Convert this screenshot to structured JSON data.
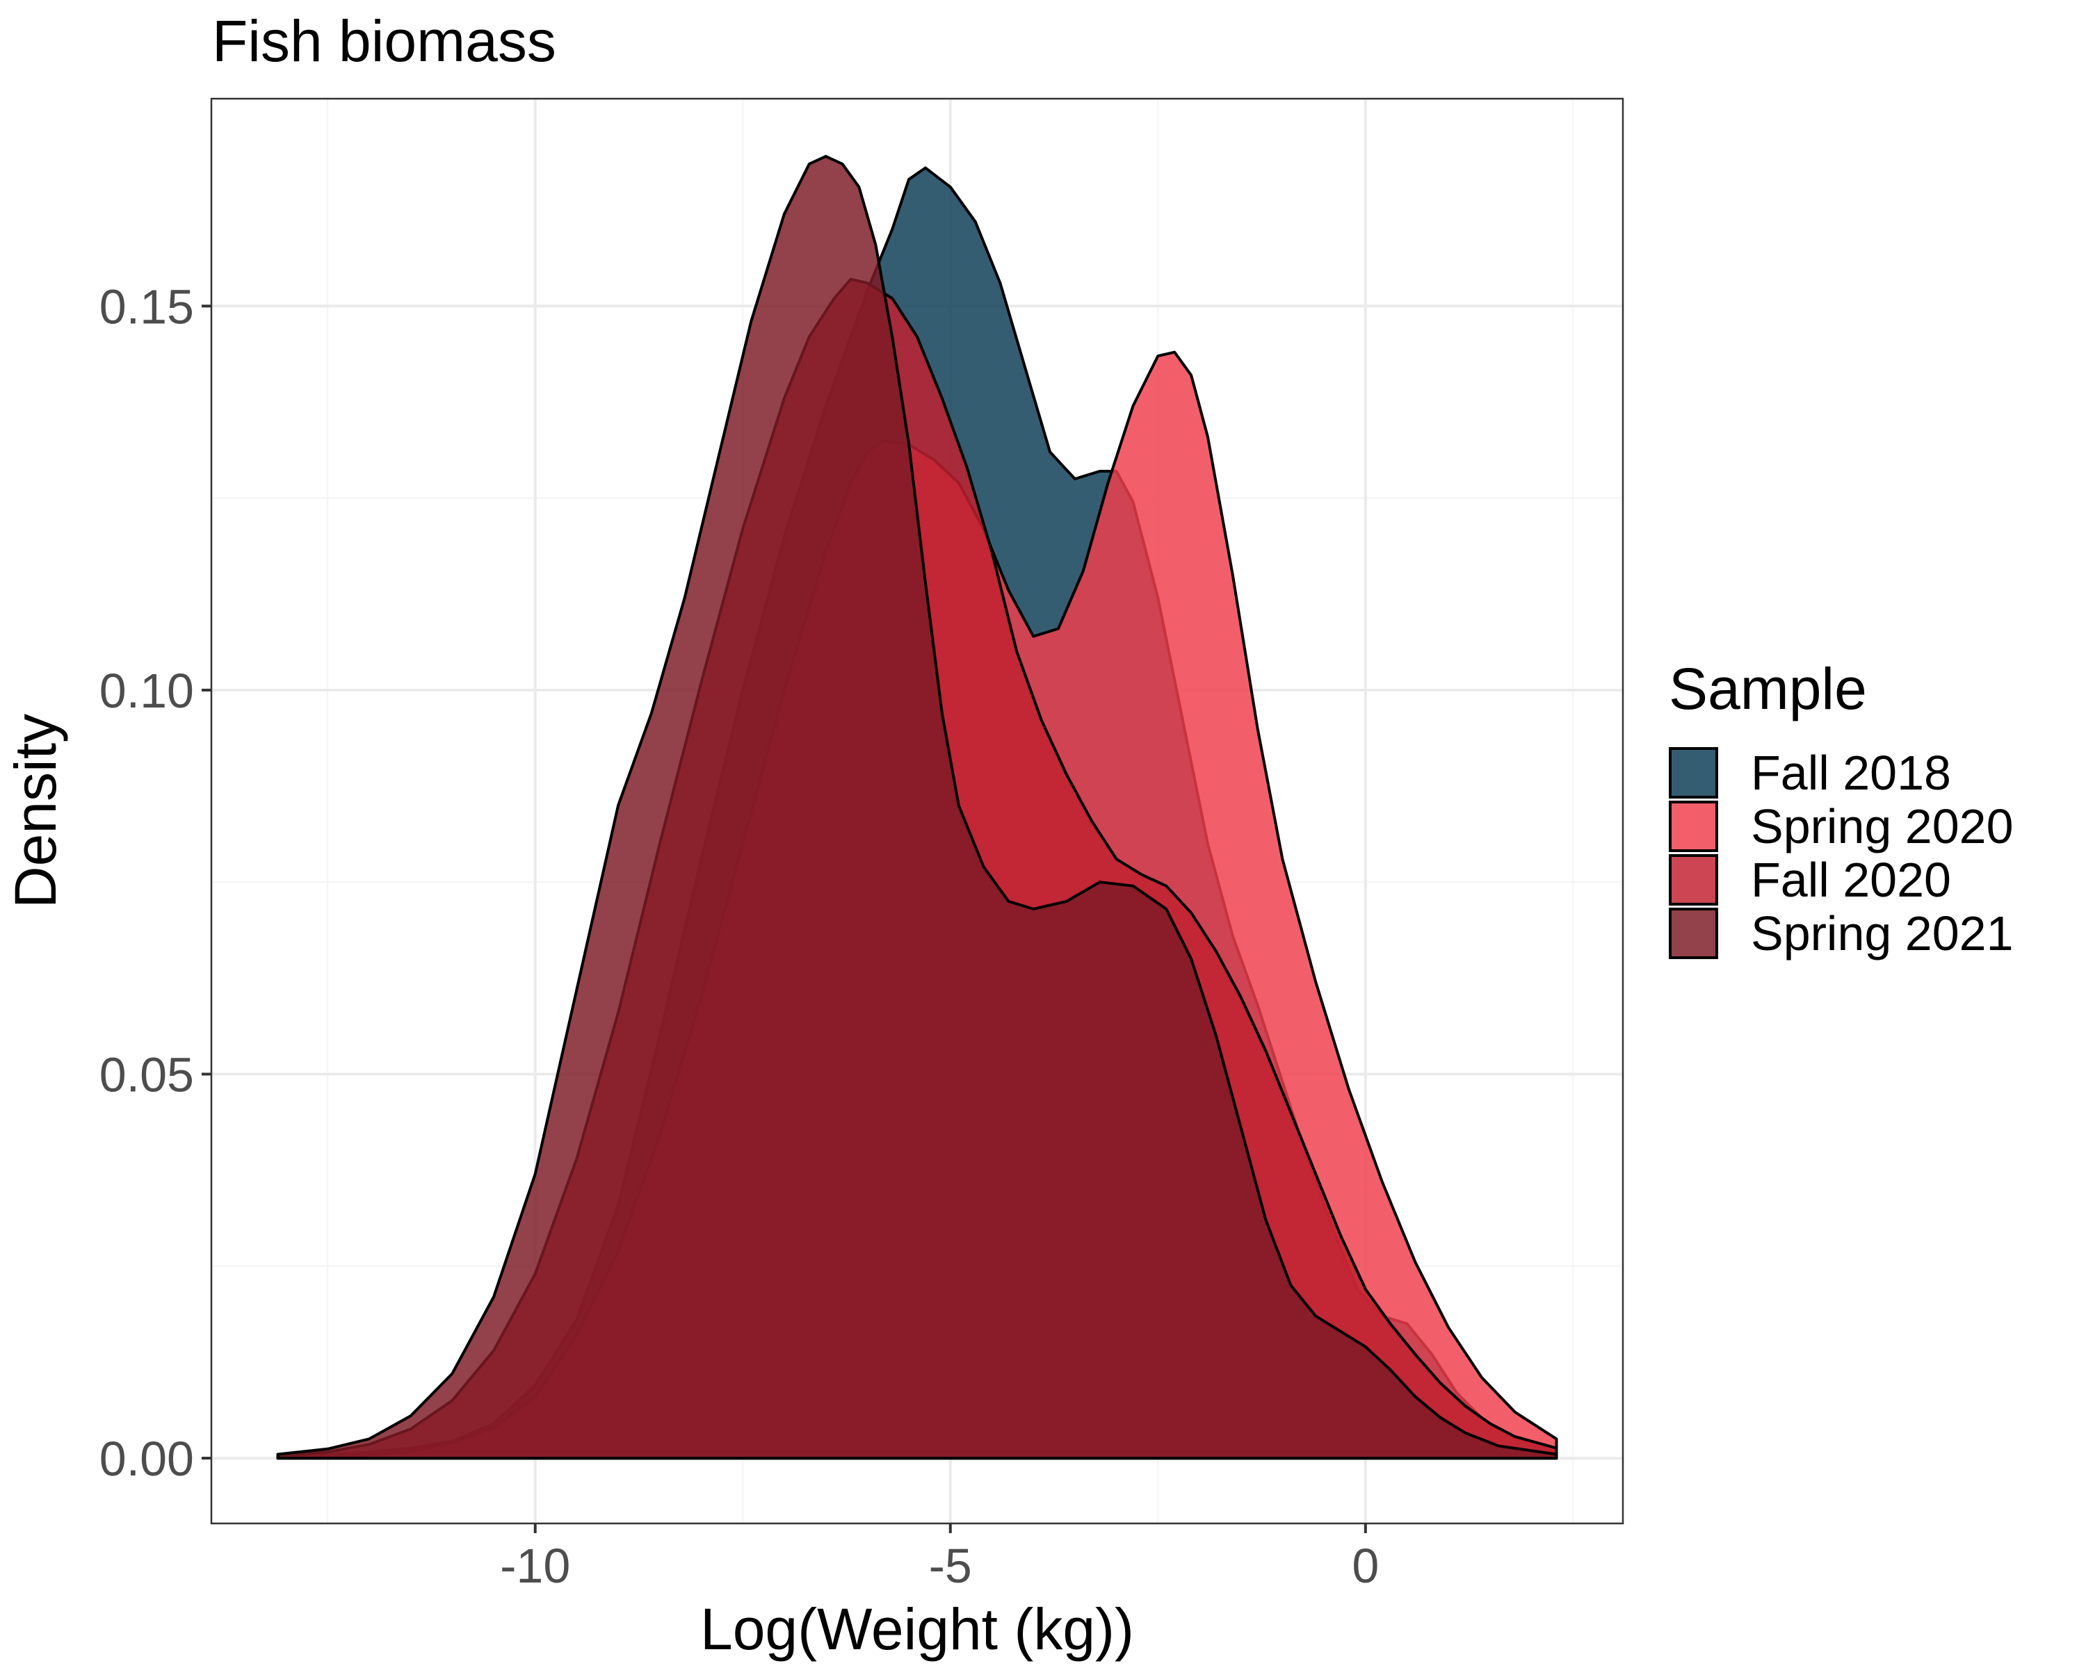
{
  "chart_data": {
    "type": "area",
    "title": "Fish biomass",
    "xlabel": "Log(Weight (kg))",
    "ylabel": "Density",
    "xlim": [
      -13.9,
      3.1
    ],
    "ylim": [
      -0.0085,
      0.177
    ],
    "x_ticks": [
      -10,
      -5,
      0
    ],
    "x_tick_labels": [
      "-10",
      "-5",
      "0"
    ],
    "x_minor_ticks": [
      -12.5,
      -7.5,
      -2.5,
      2.5
    ],
    "y_ticks": [
      0.0,
      0.05,
      0.1,
      0.15
    ],
    "y_tick_labels": [
      "0.00",
      "0.05",
      "0.10",
      "0.15"
    ],
    "y_minor_ticks": [
      0.025,
      0.075,
      0.125
    ],
    "grid": true,
    "legend": {
      "title": "Sample",
      "position": "right"
    },
    "series": [
      {
        "name": "Fall 2018",
        "color": "#0c3c55",
        "opacity": 0.83,
        "points": [
          [
            -13.1,
            0.0003
          ],
          [
            -12.5,
            0.0005
          ],
          [
            -12.0,
            0.0008
          ],
          [
            -11.5,
            0.0013
          ],
          [
            -11.0,
            0.0022
          ],
          [
            -10.5,
            0.0045
          ],
          [
            -10.0,
            0.0095
          ],
          [
            -9.5,
            0.018
          ],
          [
            -9.0,
            0.033
          ],
          [
            -8.5,
            0.055
          ],
          [
            -8.0,
            0.078
          ],
          [
            -7.5,
            0.1
          ],
          [
            -7.0,
            0.12
          ],
          [
            -6.5,
            0.137
          ],
          [
            -6.0,
            0.152
          ],
          [
            -5.7,
            0.16
          ],
          [
            -5.5,
            0.1665
          ],
          [
            -5.3,
            0.168
          ],
          [
            -5.0,
            0.1655
          ],
          [
            -4.7,
            0.161
          ],
          [
            -4.4,
            0.153
          ],
          [
            -4.1,
            0.142
          ],
          [
            -3.8,
            0.131
          ],
          [
            -3.5,
            0.1275
          ],
          [
            -3.2,
            0.1285
          ],
          [
            -3.0,
            0.1285
          ],
          [
            -2.8,
            0.1245
          ],
          [
            -2.5,
            0.112
          ],
          [
            -2.2,
            0.096
          ],
          [
            -1.9,
            0.08
          ],
          [
            -1.6,
            0.068
          ],
          [
            -1.3,
            0.059
          ],
          [
            -1.0,
            0.049
          ],
          [
            -0.7,
            0.039
          ],
          [
            -0.4,
            0.03
          ],
          [
            -0.1,
            0.022
          ],
          [
            0.2,
            0.0185
          ],
          [
            0.5,
            0.0175
          ],
          [
            0.8,
            0.0135
          ],
          [
            1.1,
            0.0085
          ],
          [
            1.4,
            0.0052
          ],
          [
            1.7,
            0.0031
          ],
          [
            2.0,
            0.0017
          ],
          [
            2.3,
            0.0008
          ]
        ]
      },
      {
        "name": "Spring 2020",
        "color": "#ef3e4c",
        "opacity": 0.83,
        "points": [
          [
            -13.1,
            0.0001
          ],
          [
            -12.5,
            0.0002
          ],
          [
            -12.0,
            0.0004
          ],
          [
            -11.5,
            0.0009
          ],
          [
            -11.0,
            0.002
          ],
          [
            -10.5,
            0.004
          ],
          [
            -10.0,
            0.008
          ],
          [
            -9.5,
            0.016
          ],
          [
            -9.0,
            0.027
          ],
          [
            -8.5,
            0.042
          ],
          [
            -8.0,
            0.06
          ],
          [
            -7.5,
            0.08
          ],
          [
            -7.0,
            0.1
          ],
          [
            -6.5,
            0.118
          ],
          [
            -6.2,
            0.127
          ],
          [
            -6.0,
            0.131
          ],
          [
            -5.8,
            0.1325
          ],
          [
            -5.5,
            0.132
          ],
          [
            -5.2,
            0.13
          ],
          [
            -4.9,
            0.127
          ],
          [
            -4.6,
            0.121
          ],
          [
            -4.3,
            0.113
          ],
          [
            -4.0,
            0.107
          ],
          [
            -3.7,
            0.108
          ],
          [
            -3.4,
            0.1155
          ],
          [
            -3.1,
            0.127
          ],
          [
            -2.8,
            0.137
          ],
          [
            -2.5,
            0.1435
          ],
          [
            -2.3,
            0.144
          ],
          [
            -2.1,
            0.141
          ],
          [
            -1.9,
            0.133
          ],
          [
            -1.6,
            0.115
          ],
          [
            -1.3,
            0.095
          ],
          [
            -1.0,
            0.078
          ],
          [
            -0.6,
            0.062
          ],
          [
            -0.2,
            0.048
          ],
          [
            0.2,
            0.036
          ],
          [
            0.6,
            0.0255
          ],
          [
            1.0,
            0.017
          ],
          [
            1.4,
            0.0105
          ],
          [
            1.8,
            0.006
          ],
          [
            2.3,
            0.0025
          ]
        ]
      },
      {
        "name": "Fall 2020",
        "color": "#c0202f",
        "opacity": 0.83,
        "points": [
          [
            -13.1,
            0.0003
          ],
          [
            -12.5,
            0.0008
          ],
          [
            -12.0,
            0.0018
          ],
          [
            -11.5,
            0.0038
          ],
          [
            -11.0,
            0.0075
          ],
          [
            -10.5,
            0.014
          ],
          [
            -10.0,
            0.024
          ],
          [
            -9.5,
            0.039
          ],
          [
            -9.0,
            0.058
          ],
          [
            -8.5,
            0.08
          ],
          [
            -8.0,
            0.101
          ],
          [
            -7.5,
            0.121
          ],
          [
            -7.0,
            0.138
          ],
          [
            -6.7,
            0.146
          ],
          [
            -6.4,
            0.151
          ],
          [
            -6.2,
            0.1535
          ],
          [
            -6.0,
            0.153
          ],
          [
            -5.7,
            0.151
          ],
          [
            -5.4,
            0.146
          ],
          [
            -5.1,
            0.138
          ],
          [
            -4.8,
            0.129
          ],
          [
            -4.5,
            0.118
          ],
          [
            -4.2,
            0.105
          ],
          [
            -3.9,
            0.096
          ],
          [
            -3.6,
            0.089
          ],
          [
            -3.3,
            0.083
          ],
          [
            -3.0,
            0.078
          ],
          [
            -2.7,
            0.076
          ],
          [
            -2.4,
            0.0745
          ],
          [
            -2.1,
            0.071
          ],
          [
            -1.8,
            0.066
          ],
          [
            -1.5,
            0.06
          ],
          [
            -1.2,
            0.053
          ],
          [
            -0.9,
            0.045
          ],
          [
            -0.6,
            0.037
          ],
          [
            -0.3,
            0.029
          ],
          [
            0.0,
            0.022
          ],
          [
            0.3,
            0.0175
          ],
          [
            0.6,
            0.0135
          ],
          [
            0.9,
            0.0098
          ],
          [
            1.2,
            0.0068
          ],
          [
            1.5,
            0.0045
          ],
          [
            1.8,
            0.0028
          ],
          [
            2.3,
            0.0013
          ]
        ]
      },
      {
        "name": "Spring 2021",
        "color": "#7d1a25",
        "opacity": 0.83,
        "points": [
          [
            -13.1,
            0.0005
          ],
          [
            -12.5,
            0.0012
          ],
          [
            -12.0,
            0.0025
          ],
          [
            -11.5,
            0.0055
          ],
          [
            -11.0,
            0.011
          ],
          [
            -10.5,
            0.021
          ],
          [
            -10.0,
            0.037
          ],
          [
            -9.5,
            0.061
          ],
          [
            -9.0,
            0.085
          ],
          [
            -8.6,
            0.097
          ],
          [
            -8.2,
            0.112
          ],
          [
            -7.8,
            0.13
          ],
          [
            -7.4,
            0.148
          ],
          [
            -7.0,
            0.162
          ],
          [
            -6.7,
            0.1685
          ],
          [
            -6.5,
            0.1695
          ],
          [
            -6.3,
            0.1685
          ],
          [
            -6.1,
            0.1655
          ],
          [
            -5.9,
            0.158
          ],
          [
            -5.7,
            0.146
          ],
          [
            -5.5,
            0.132
          ],
          [
            -5.3,
            0.114
          ],
          [
            -5.1,
            0.097
          ],
          [
            -4.9,
            0.085
          ],
          [
            -4.6,
            0.077
          ],
          [
            -4.3,
            0.0725
          ],
          [
            -4.0,
            0.0715
          ],
          [
            -3.6,
            0.0725
          ],
          [
            -3.2,
            0.075
          ],
          [
            -2.8,
            0.0745
          ],
          [
            -2.4,
            0.0715
          ],
          [
            -2.1,
            0.065
          ],
          [
            -1.8,
            0.055
          ],
          [
            -1.5,
            0.043
          ],
          [
            -1.2,
            0.031
          ],
          [
            -0.9,
            0.0225
          ],
          [
            -0.6,
            0.0185
          ],
          [
            -0.3,
            0.0165
          ],
          [
            0.0,
            0.0145
          ],
          [
            0.3,
            0.0115
          ],
          [
            0.6,
            0.008
          ],
          [
            0.9,
            0.0053
          ],
          [
            1.2,
            0.0033
          ],
          [
            1.6,
            0.0016
          ],
          [
            2.3,
            0.0005
          ]
        ]
      }
    ]
  }
}
